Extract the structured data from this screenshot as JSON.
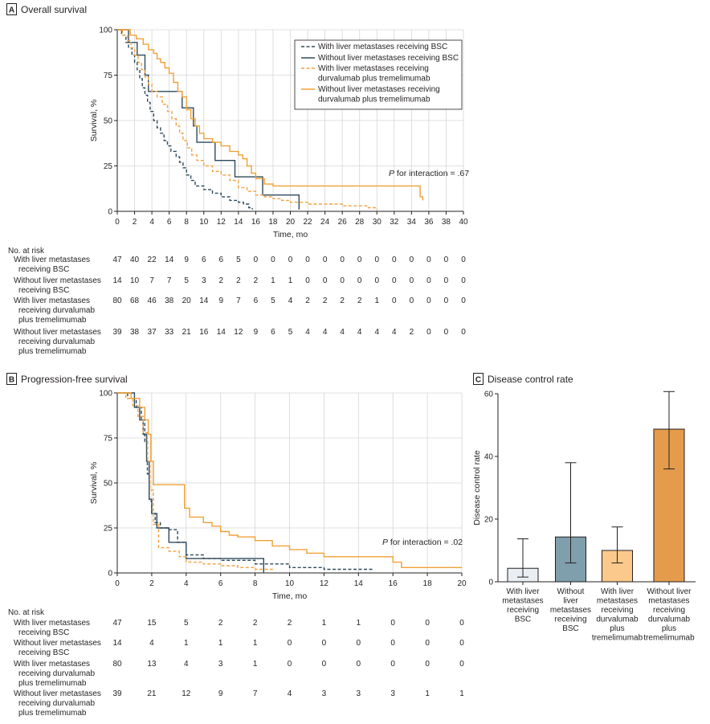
{
  "colors": {
    "bsc_with": "#2e4a5c",
    "bsc_without": "#2e4a5c",
    "dt_with": "#f2a340",
    "dt_without": "#f0a035",
    "axis": "#231f20",
    "grid": "#d6d6d6",
    "bar1_fill": "#e9eef2",
    "bar2_fill": "#7f9fad",
    "bar3_fill": "#fbc98b",
    "bar4_fill": "#e49c4c"
  },
  "panel_a": {
    "letter": "A",
    "title": "Overall survival",
    "p_italic": "P",
    "p_text": " for interaction = .67",
    "risk_header": "No. at risk",
    "risk_groups": [
      {
        "lines": [
          "With liver metastases",
          "receiving BSC"
        ],
        "values": [
          "47",
          "40",
          "22",
          "14",
          "9",
          "6",
          "6",
          "5",
          "0",
          "0",
          "0",
          "0",
          "0",
          "0",
          "0",
          "0",
          "0",
          "0",
          "0",
          "0",
          "0"
        ]
      },
      {
        "lines": [
          "Without liver metastases",
          "receiving BSC"
        ],
        "values": [
          "14",
          "10",
          "7",
          "7",
          "5",
          "3",
          "2",
          "2",
          "2",
          "1",
          "1",
          "0",
          "0",
          "0",
          "0",
          "0",
          "0",
          "0",
          "0",
          "0",
          "0"
        ]
      },
      {
        "lines": [
          "With liver metastases",
          "receiving durvalumab",
          "plus tremelimumab"
        ],
        "values": [
          "80",
          "68",
          "46",
          "38",
          "20",
          "14",
          "9",
          "7",
          "6",
          "5",
          "4",
          "2",
          "2",
          "2",
          "2",
          "1",
          "0",
          "0",
          "0",
          "0",
          "0"
        ]
      },
      {
        "lines": [
          "Without liver metastases",
          "receiving durvalumab",
          "plus tremelimumab"
        ],
        "values": [
          "39",
          "38",
          "37",
          "33",
          "21",
          "16",
          "14",
          "12",
          "9",
          "6",
          "5",
          "4",
          "4",
          "4",
          "4",
          "4",
          "4",
          "2",
          "0",
          "0",
          "0"
        ]
      }
    ]
  },
  "panel_b": {
    "letter": "B",
    "title": "Progression-free survival",
    "p_italic": "P",
    "p_text": " for interaction = .02",
    "risk_header": "No. at risk",
    "risk_groups": [
      {
        "lines": [
          "With liver metastases",
          "receiving BSC"
        ],
        "values": [
          "47",
          "15",
          "5",
          "2",
          "2",
          "2",
          "1",
          "1",
          "0",
          "0",
          "0"
        ]
      },
      {
        "lines": [
          "Without liver metastases",
          "receiving BSC"
        ],
        "values": [
          "14",
          "4",
          "1",
          "1",
          "1",
          "0",
          "0",
          "0",
          "0",
          "0",
          "0"
        ]
      },
      {
        "lines": [
          "With liver metastases",
          "receiving durvalumab",
          "plus tremelimumab"
        ],
        "values": [
          "80",
          "13",
          "4",
          "3",
          "1",
          "0",
          "0",
          "0",
          "0",
          "0",
          "0"
        ]
      },
      {
        "lines": [
          "Without liver metastases",
          "receiving durvalumab",
          "plus tremelimumab"
        ],
        "values": [
          "39",
          "21",
          "12",
          "9",
          "7",
          "4",
          "3",
          "3",
          "3",
          "1",
          "1"
        ]
      }
    ]
  },
  "panel_c": {
    "letter": "C",
    "title": "Disease control rate"
  },
  "chart_data": [
    {
      "type": "line",
      "id": "os",
      "title": "Overall survival",
      "xlabel": "Time, mo",
      "ylabel": "Survival, %",
      "xlim": [
        0,
        40
      ],
      "ylim": [
        0,
        100
      ],
      "xticks": [
        0,
        2,
        4,
        6,
        8,
        10,
        12,
        14,
        16,
        18,
        20,
        22,
        24,
        26,
        28,
        30,
        32,
        34,
        36,
        38,
        40
      ],
      "yticks": [
        0,
        25,
        50,
        75,
        100
      ],
      "grid": true,
      "legend": [
        "With liver metastases receiving BSC",
        "Without liver metastases receiving BSC",
        "With liver metastases receiving",
        "durvalumab plus tremelimumab",
        "Without liver metastases receiving",
        "durvalumab plus tremelimumab"
      ],
      "series": [
        {
          "key": "bsc_with",
          "name": "With liver metastases receiving BSC",
          "style": "dashed",
          "x": [
            0,
            0.5,
            1,
            1.3,
            1.7,
            2,
            2.3,
            2.6,
            2.9,
            3.2,
            3.5,
            3.8,
            4.2,
            4.6,
            5,
            5.4,
            5.8,
            6.2,
            6.8,
            7.2,
            7.6,
            8,
            8.5,
            9,
            10,
            11,
            12,
            13,
            14,
            14.6,
            15.2,
            15.6
          ],
          "y": [
            100,
            97,
            93,
            90,
            86,
            82,
            78,
            73,
            68,
            64,
            60,
            55,
            50,
            46,
            43,
            39,
            36,
            33,
            30,
            27,
            24,
            20,
            17,
            14,
            12,
            10,
            8,
            6,
            5,
            4,
            2,
            1
          ]
        },
        {
          "key": "bsc_without",
          "name": "Without liver metastases receiving BSC",
          "style": "solid",
          "x": [
            0,
            1.3,
            2.3,
            3.2,
            3.6,
            6.8,
            7.5,
            8.8,
            9.2,
            11.3,
            13.6,
            16.8,
            21
          ],
          "y": [
            100,
            93,
            86,
            75,
            66,
            66,
            57,
            47,
            38,
            28,
            19,
            9,
            1
          ]
        },
        {
          "key": "dt_with",
          "name": "With liver metastases receiving durvalumab plus tremelimumab",
          "style": "dashed",
          "x": [
            0,
            0.6,
            1.2,
            1.6,
            2,
            2.4,
            2.8,
            3.2,
            3.6,
            4,
            4.6,
            5.2,
            5.8,
            6.3,
            6.8,
            7.2,
            7.6,
            8.1,
            8.6,
            9.2,
            10,
            11,
            12,
            13,
            14,
            15,
            16,
            17,
            18,
            19,
            20,
            22,
            24,
            26,
            28,
            29,
            30
          ],
          "y": [
            100,
            97,
            94,
            90,
            86,
            82,
            78,
            74,
            70,
            66,
            63,
            59,
            55,
            51,
            47,
            43,
            39,
            35,
            31,
            28,
            25,
            22,
            20,
            17,
            13,
            11,
            9,
            8,
            7,
            6,
            5,
            4,
            4,
            3,
            3,
            2,
            1
          ]
        },
        {
          "key": "dt_without",
          "name": "Without liver metastases receiving durvalumab plus tremelimumab",
          "style": "solid",
          "x": [
            0,
            1.5,
            2.2,
            3,
            3.6,
            4.2,
            4.6,
            5,
            5.5,
            6,
            6.5,
            7,
            7.5,
            8,
            8.5,
            9,
            9.5,
            10,
            11,
            12,
            13,
            14,
            14.5,
            15,
            15.5,
            16,
            17,
            18,
            20,
            22,
            24,
            26,
            28,
            30,
            32,
            33,
            34,
            35,
            35.3
          ],
          "y": [
            100,
            97,
            95,
            92,
            89,
            87,
            84,
            82,
            79,
            76,
            71,
            66,
            63,
            56,
            51,
            47,
            43,
            40,
            38,
            36,
            33,
            31,
            29,
            25,
            21,
            18,
            15,
            14,
            14,
            14,
            14,
            14,
            14,
            14,
            14,
            14,
            14,
            8,
            6
          ]
        }
      ]
    },
    {
      "type": "line",
      "id": "pfs",
      "title": "Progression-free survival",
      "xlabel": "Time, mo",
      "ylabel": "Survival, %",
      "xlim": [
        0,
        20
      ],
      "ylim": [
        0,
        100
      ],
      "xticks": [
        0,
        2,
        4,
        6,
        8,
        10,
        12,
        14,
        16,
        18,
        20
      ],
      "yticks": [
        0,
        25,
        50,
        75,
        100
      ],
      "grid": true,
      "series": [
        {
          "key": "bsc_with",
          "name": "With liver metastases receiving BSC",
          "style": "dashed",
          "x": [
            0,
            0.6,
            1.1,
            1.4,
            1.6,
            1.75,
            1.85,
            2,
            2.2,
            2.5,
            3,
            3.5,
            4,
            5,
            6,
            8,
            10,
            12,
            14,
            14.8
          ],
          "y": [
            100,
            97,
            92,
            85,
            73,
            55,
            40,
            33,
            28,
            25,
            24,
            17,
            10,
            8,
            7,
            5,
            3,
            2,
            2,
            2
          ]
        },
        {
          "key": "bsc_without",
          "name": "Without liver metastases receiving BSC",
          "style": "solid",
          "x": [
            0,
            1,
            1.3,
            1.5,
            1.7,
            1.85,
            2,
            2.3,
            3,
            3.5,
            4,
            8.5,
            8.5
          ],
          "y": [
            100,
            92,
            85,
            77,
            62,
            41,
            33,
            25,
            17,
            17,
            8,
            8,
            0
          ]
        },
        {
          "key": "dt_with",
          "name": "With liver metastases receiving durvalumab plus tremelimumab",
          "style": "dashed",
          "x": [
            0,
            0.5,
            0.9,
            1.2,
            1.5,
            1.75,
            1.9,
            2.1,
            2.4,
            3,
            3.6,
            4,
            5,
            6,
            7,
            8,
            9
          ],
          "y": [
            100,
            97,
            93,
            87,
            78,
            62,
            46,
            27,
            14,
            12,
            9,
            6,
            5,
            4,
            3,
            2,
            1
          ]
        },
        {
          "key": "dt_without",
          "name": "Without liver metastases receiving durvalumab plus tremelimumab",
          "style": "solid",
          "x": [
            0,
            0.8,
            1.3,
            1.6,
            1.8,
            1.95,
            2.1,
            3.6,
            3.9,
            4.2,
            5,
            5.5,
            6,
            6.5,
            7,
            8,
            9,
            10,
            11,
            12,
            14,
            16,
            16.5,
            18,
            20
          ],
          "y": [
            100,
            97,
            92,
            85,
            77,
            62,
            49,
            49,
            36,
            31,
            28,
            26,
            23,
            21,
            20,
            18,
            15,
            13,
            11,
            9,
            9,
            6,
            3,
            3,
            3
          ]
        }
      ]
    },
    {
      "type": "bar",
      "id": "dcr",
      "title": "Disease control rate",
      "ylabel": "Disease control rate",
      "ylim": [
        0,
        60
      ],
      "yticks": [
        0,
        20,
        40,
        60
      ],
      "categories": [
        [
          "With liver",
          "metastases",
          "receiving",
          "BSC"
        ],
        [
          "Without",
          "liver",
          "metastases",
          "receiving",
          "BSC"
        ],
        [
          "With liver",
          "metastases",
          "receiving",
          "durvalumab",
          "plus",
          "tremelimumab"
        ],
        [
          "Without liver",
          "metastases",
          "receiving",
          "durvalumab",
          "plus",
          "tremelimumab"
        ]
      ],
      "values": [
        4.3,
        14.3,
        10,
        48.7
      ],
      "ci_low": [
        1.5,
        6,
        6,
        36
      ],
      "ci_high": [
        13.7,
        38,
        17.5,
        60.7
      ]
    }
  ]
}
